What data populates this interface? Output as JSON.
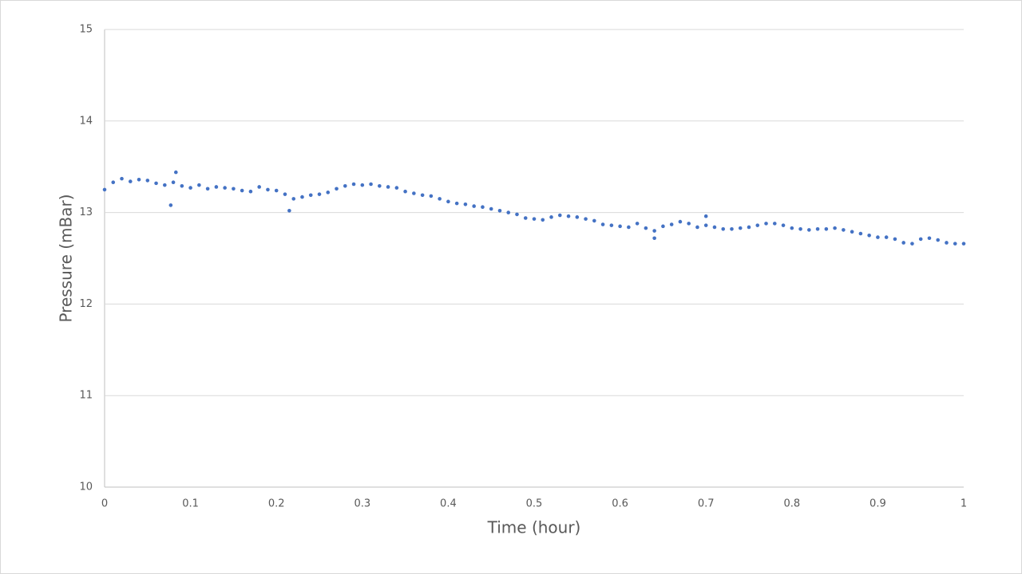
{
  "chart_data": {
    "type": "scatter",
    "x_label": "Time (hour)",
    "y_label": "Pressure (mBar)",
    "color": "#4472c4",
    "grid": true,
    "xlim": [
      0,
      1
    ],
    "ylim": [
      10,
      15
    ],
    "xticks": [
      0,
      0.1,
      0.2,
      0.3,
      0.4,
      0.5,
      0.6,
      0.7,
      0.8,
      0.9,
      1
    ],
    "yticks": [
      10,
      11,
      12,
      13,
      14,
      15
    ],
    "x": [
      0,
      0.01,
      0.02,
      0.03,
      0.04,
      0.05,
      0.06,
      0.07,
      0.08,
      0.09,
      0.1,
      0.11,
      0.12,
      0.13,
      0.14,
      0.15,
      0.16,
      0.17,
      0.18,
      0.19,
      0.2,
      0.21,
      0.22,
      0.23,
      0.24,
      0.25,
      0.26,
      0.27,
      0.28,
      0.29,
      0.3,
      0.31,
      0.32,
      0.33,
      0.34,
      0.35,
      0.36,
      0.37,
      0.38,
      0.39,
      0.4,
      0.41,
      0.42,
      0.43,
      0.44,
      0.45,
      0.46,
      0.47,
      0.48,
      0.49,
      0.5,
      0.51,
      0.52,
      0.53,
      0.54,
      0.55,
      0.56,
      0.57,
      0.58,
      0.59,
      0.6,
      0.61,
      0.62,
      0.63,
      0.64,
      0.65,
      0.66,
      0.67,
      0.68,
      0.69,
      0.7,
      0.71,
      0.72,
      0.73,
      0.74,
      0.75,
      0.76,
      0.77,
      0.78,
      0.79,
      0.8,
      0.81,
      0.82,
      0.83,
      0.84,
      0.85,
      0.86,
      0.87,
      0.88,
      0.89,
      0.9,
      0.91,
      0.92,
      0.93,
      0.94,
      0.95,
      0.96,
      0.97,
      0.98,
      0.99,
      1,
      0.077,
      0.083,
      0.215,
      0.64,
      0.7
    ],
    "values": [
      13.25,
      13.33,
      13.37,
      13.34,
      13.36,
      13.35,
      13.32,
      13.3,
      13.33,
      13.29,
      13.27,
      13.3,
      13.26,
      13.28,
      13.27,
      13.26,
      13.24,
      13.23,
      13.28,
      13.25,
      13.24,
      13.2,
      13.15,
      13.17,
      13.19,
      13.2,
      13.22,
      13.26,
      13.29,
      13.31,
      13.3,
      13.31,
      13.29,
      13.28,
      13.27,
      13.23,
      13.21,
      13.19,
      13.18,
      13.15,
      13.12,
      13.1,
      13.09,
      13.07,
      13.06,
      13.04,
      13.02,
      13.0,
      12.98,
      12.94,
      12.93,
      12.92,
      12.95,
      12.97,
      12.96,
      12.95,
      12.93,
      12.91,
      12.87,
      12.86,
      12.85,
      12.84,
      12.88,
      12.83,
      12.8,
      12.85,
      12.87,
      12.9,
      12.88,
      12.84,
      12.86,
      12.84,
      12.82,
      12.82,
      12.83,
      12.84,
      12.86,
      12.88,
      12.88,
      12.86,
      12.83,
      12.82,
      12.81,
      12.82,
      12.82,
      12.83,
      12.81,
      12.79,
      12.77,
      12.75,
      12.73,
      12.73,
      12.71,
      12.67,
      12.66,
      12.71,
      12.72,
      12.7,
      12.67,
      12.66,
      12.66,
      13.08,
      13.44,
      13.02,
      12.72,
      12.96
    ]
  }
}
